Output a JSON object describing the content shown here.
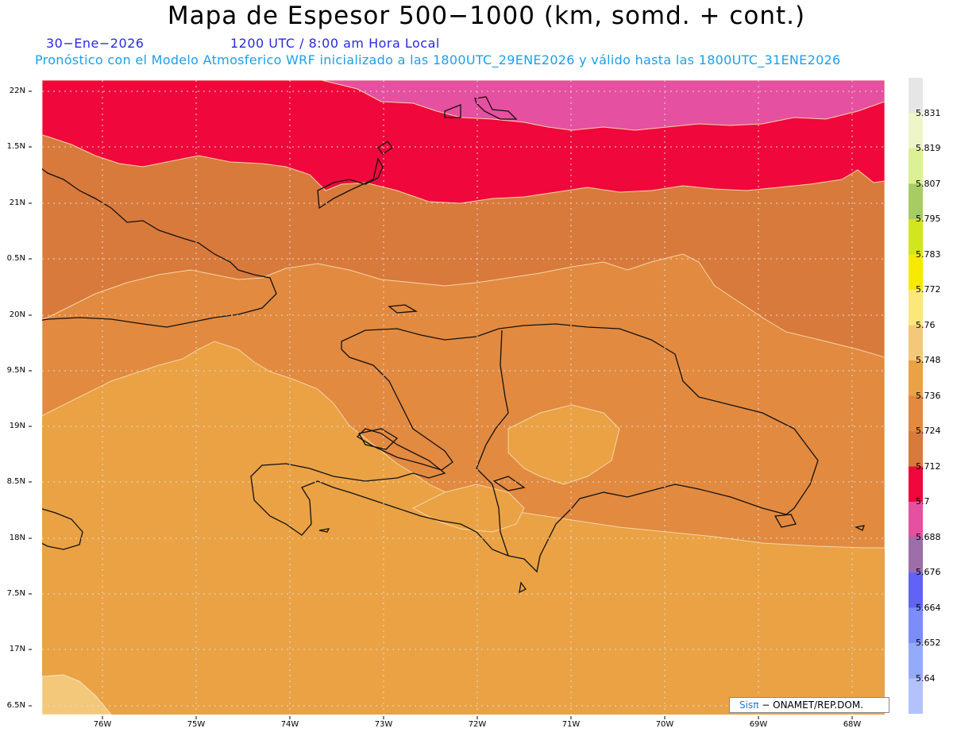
{
  "header": {
    "title": "Mapa de Espesor 500−1000 (km, somd. + cont.)",
    "date": "30−Ene−2026",
    "time": "1200 UTC / 8:00 am Hora Local",
    "subtitle": "Pronóstico con el Modelo Atmosferico WRF inicializado a las 1800UTC_29ENE2026 y válido hasta las  1800UTC_31ENE2026"
  },
  "axes": {
    "lat_labels": [
      "22N",
      "1.5N",
      "21N",
      "0.5N",
      "20N",
      "9.5N",
      "19N",
      "8.5N",
      "18N",
      "7.5N",
      "17N",
      "6.5N"
    ],
    "lon_labels": [
      "76W",
      "75W",
      "74W",
      "73W",
      "72W",
      "71W",
      "70W",
      "69W",
      "68W"
    ]
  },
  "colorbar": {
    "labels": [
      "5.831",
      "5.819",
      "5.807",
      "5.795",
      "5.783",
      "5.772",
      "5.76",
      "5.748",
      "5.736",
      "5.724",
      "5.712",
      "5.7",
      "5.688",
      "5.676",
      "5.664",
      "5.652",
      "5.64"
    ],
    "colors": [
      "#e6e6e6",
      "#eef5c8",
      "#dcf096",
      "#a8cc64",
      "#d2e61e",
      "#f7ea00",
      "#fce87a",
      "#f4c87a",
      "#eaa244",
      "#e28a40",
      "#d87a3c",
      "#f0073c",
      "#e650a0",
      "#9c6eaa",
      "#6262f6",
      "#7c8cfa",
      "#94aafa",
      "#b4c2fc"
    ]
  },
  "colors": {
    "thick_5724": "#e28a40",
    "thick_5712": "#d87a3c",
    "thick_5736": "#eaa244",
    "thick_5748": "#f4c87a",
    "thick_5700": "#f0073c",
    "thick_5688": "#e650a0"
  },
  "credit": {
    "sis": "Sisπ",
    "rest": "− ONAMET/REP.DOM."
  }
}
